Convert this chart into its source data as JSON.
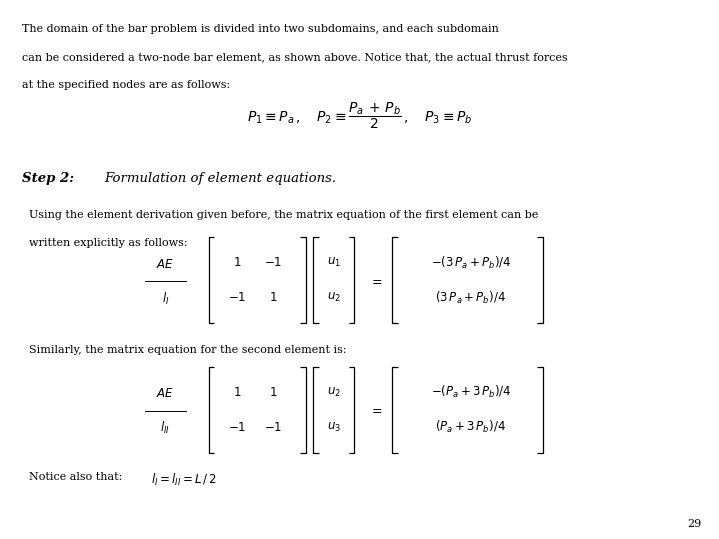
{
  "background_color": "#ffffff",
  "page_number": "29",
  "text_color": "#000000",
  "para1_line1": "The domain of the bar problem is divided into two subdomains, and each subdomain",
  "para1_line2": "can be considered a two-node bar element, as shown above. Notice that, the actual thrust forces",
  "para1_line3": "at the specified nodes are as follows:",
  "step2_label": "Step 2:",
  "step2_text": "Formulation of element equations.",
  "para2_line1": "Using the element derivation given before, the matrix equation of the first element can be",
  "para2_line2": "written explicitly as follows:",
  "para3": "Similarly, the matrix equation for the second element is:",
  "notice_label": "Notice also that:",
  "fs_body": 8.0,
  "fs_formula": 8.5,
  "fs_step": 9.5,
  "fs_page": 8.0
}
